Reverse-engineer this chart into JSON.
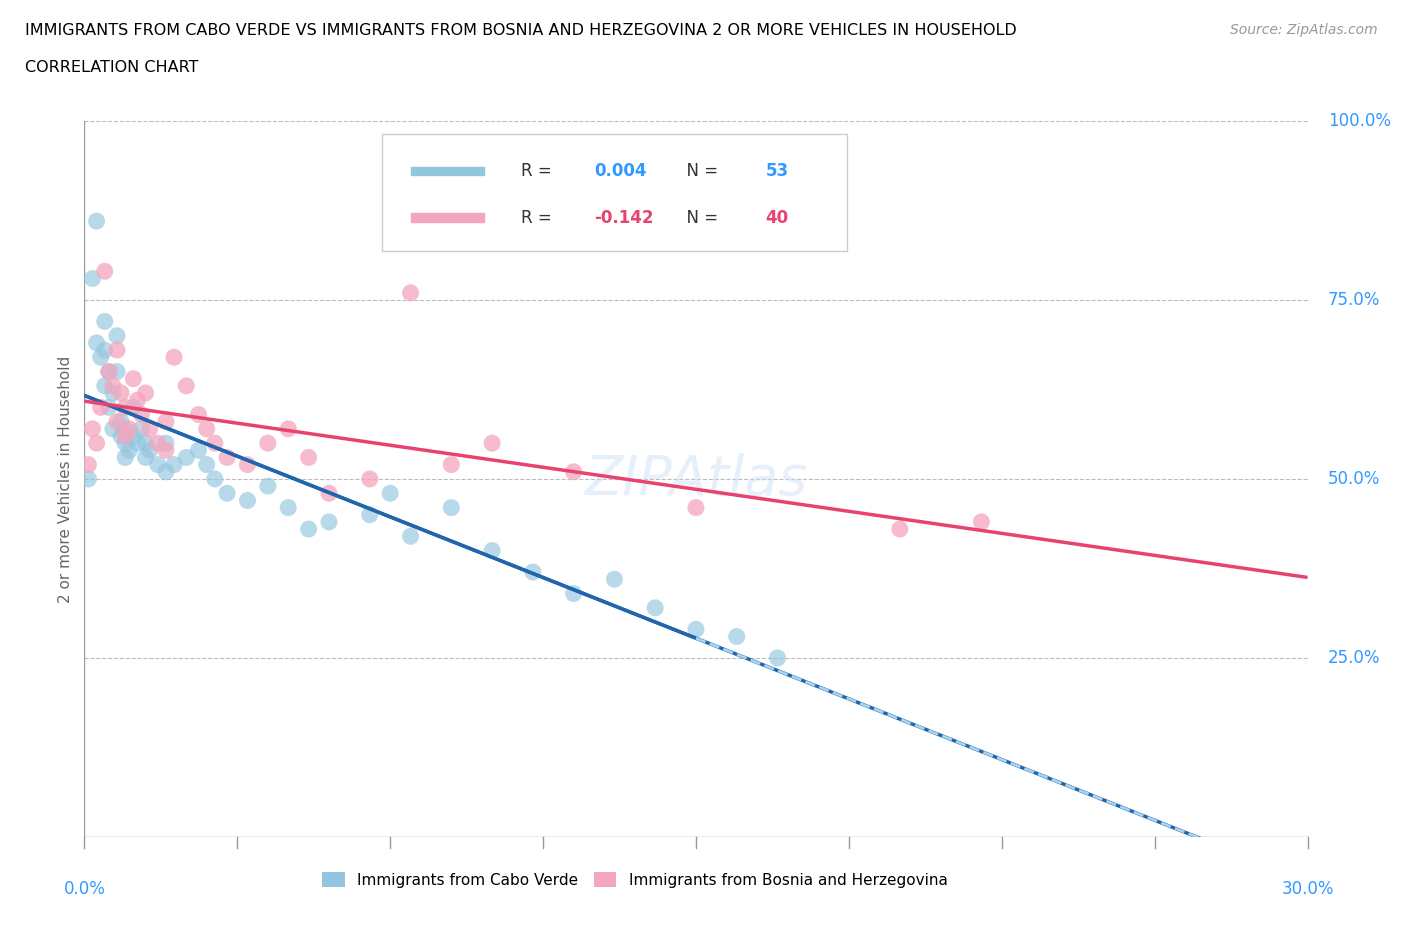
{
  "title_line1": "IMMIGRANTS FROM CABO VERDE VS IMMIGRANTS FROM BOSNIA AND HERZEGOVINA 2 OR MORE VEHICLES IN HOUSEHOLD",
  "title_line2": "CORRELATION CHART",
  "source": "Source: ZipAtlas.com",
  "ylabel": "2 or more Vehicles in Household",
  "xlim": [
    0.0,
    30.0
  ],
  "ylim": [
    0.0,
    100.0
  ],
  "cabo_verde_R": 0.004,
  "cabo_verde_N": 53,
  "bosnia_R": -0.142,
  "bosnia_N": 40,
  "cabo_verde_color": "#92c5de",
  "bosnia_color": "#f4a6be",
  "cabo_verde_line_color": "#2166ac",
  "bosnia_line_color": "#e8436e",
  "cabo_verde_line_dash": "#a8d4f0",
  "accent_color": "#3399ff",
  "cabo_verde_x": [
    0.1,
    0.2,
    0.3,
    0.3,
    0.4,
    0.5,
    0.5,
    0.5,
    0.6,
    0.6,
    0.7,
    0.7,
    0.8,
    0.8,
    0.9,
    0.9,
    1.0,
    1.0,
    1.0,
    1.1,
    1.2,
    1.2,
    1.3,
    1.4,
    1.5,
    1.5,
    1.6,
    1.8,
    2.0,
    2.0,
    2.2,
    2.5,
    2.8,
    3.0,
    3.2,
    3.5,
    4.0,
    4.5,
    5.0,
    5.5,
    6.0,
    7.0,
    7.5,
    8.0,
    9.0,
    10.0,
    11.0,
    12.0,
    13.0,
    14.0,
    15.0,
    16.0,
    17.0
  ],
  "cabo_verde_y": [
    50,
    78,
    86,
    69,
    67,
    72,
    68,
    63,
    65,
    60,
    62,
    57,
    70,
    65,
    58,
    56,
    55,
    57,
    53,
    54,
    56,
    60,
    55,
    57,
    53,
    55,
    54,
    52,
    51,
    55,
    52,
    53,
    54,
    52,
    50,
    48,
    47,
    49,
    46,
    43,
    44,
    45,
    48,
    42,
    46,
    40,
    37,
    34,
    36,
    32,
    29,
    28,
    25
  ],
  "bosnia_x": [
    0.1,
    0.2,
    0.3,
    0.4,
    0.5,
    0.6,
    0.7,
    0.8,
    0.8,
    0.9,
    1.0,
    1.0,
    1.1,
    1.2,
    1.3,
    1.4,
    1.5,
    1.6,
    1.8,
    2.0,
    2.0,
    2.2,
    2.5,
    2.8,
    3.0,
    3.2,
    3.5,
    4.0,
    4.5,
    5.0,
    5.5,
    6.0,
    7.0,
    8.0,
    9.0,
    10.0,
    12.0,
    15.0,
    20.0,
    22.0
  ],
  "bosnia_y": [
    52,
    57,
    55,
    60,
    79,
    65,
    63,
    68,
    58,
    62,
    56,
    60,
    57,
    64,
    61,
    59,
    62,
    57,
    55,
    54,
    58,
    67,
    63,
    59,
    57,
    55,
    53,
    52,
    55,
    57,
    53,
    48,
    50,
    76,
    52,
    55,
    51,
    46,
    43,
    44
  ]
}
